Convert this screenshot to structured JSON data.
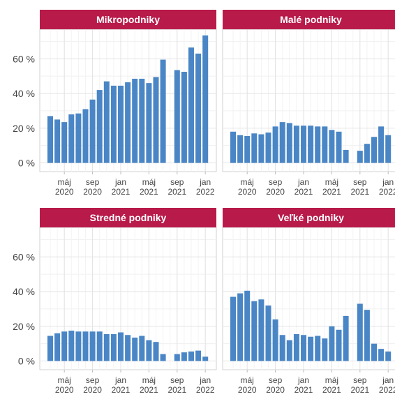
{
  "chart_data": [
    {
      "type": "bar",
      "title": "Mikropodniky",
      "color": "#4a86c5",
      "categories": [
        null,
        null,
        "máj 2020",
        null,
        null,
        null,
        "sep 2020",
        null,
        null,
        null,
        "jan 2021",
        null,
        null,
        null,
        "máj 2021",
        null,
        null,
        null,
        "sep 2021",
        null,
        null,
        null,
        "jan 2022"
      ],
      "values": [
        27,
        25,
        23.5,
        28,
        28.5,
        31,
        36.5,
        42,
        47,
        44.5,
        44.5,
        46.5,
        48.5,
        48.5,
        46,
        49.5,
        59.5,
        null,
        53.5,
        52.5,
        66.5,
        63,
        73.5
      ],
      "ylim": [
        -5,
        77
      ],
      "yticks": [
        {
          "value": 0,
          "label": "0 %"
        },
        {
          "value": 20,
          "label": "20 %"
        },
        {
          "value": 40,
          "label": "40 %"
        },
        {
          "value": 60,
          "label": "60 %"
        }
      ],
      "grid": true
    },
    {
      "type": "bar",
      "title": "Malé podniky",
      "color": "#4a86c5",
      "categories": [
        null,
        null,
        "máj 2020",
        null,
        null,
        null,
        "sep 2020",
        null,
        null,
        null,
        "jan 2021",
        null,
        null,
        null,
        "máj 2021",
        null,
        null,
        null,
        "sep 2021",
        null,
        null,
        null,
        "jan 2022"
      ],
      "values": [
        18,
        16,
        15.5,
        17,
        16.5,
        17.5,
        21,
        23.5,
        23,
        21.5,
        21.5,
        21.5,
        21,
        21,
        19,
        18,
        7.5,
        null,
        7,
        11,
        15,
        21,
        16
      ],
      "ylim": [
        -5,
        77
      ],
      "yticks": [
        0,
        20,
        40,
        60
      ],
      "grid": true
    },
    {
      "type": "bar",
      "title": "Stredné podniky",
      "color": "#4a86c5",
      "categories": [
        null,
        null,
        "máj 2020",
        null,
        null,
        null,
        "sep 2020",
        null,
        null,
        null,
        "jan 2021",
        null,
        null,
        null,
        "máj 2021",
        null,
        null,
        null,
        "sep 2021",
        null,
        null,
        null,
        "jan 2022"
      ],
      "values": [
        14.5,
        16,
        17,
        17.5,
        17,
        17,
        17,
        17,
        15.5,
        15.5,
        16.5,
        15,
        13.5,
        14.5,
        12,
        11,
        4,
        null,
        4,
        5,
        5.5,
        6,
        2.5
      ],
      "ylim": [
        -5,
        77
      ],
      "yticks": [
        {
          "value": 0,
          "label": "0 %"
        },
        {
          "value": 20,
          "label": "20 %"
        },
        {
          "value": 40,
          "label": "40 %"
        },
        {
          "value": 60,
          "label": "60 %"
        }
      ],
      "grid": true
    },
    {
      "type": "bar",
      "title": "Veľké podniky",
      "color": "#4a86c5",
      "categories": [
        null,
        null,
        "máj 2020",
        null,
        null,
        null,
        "sep 2020",
        null,
        null,
        null,
        "jan 2021",
        null,
        null,
        null,
        "máj 2021",
        null,
        null,
        null,
        "sep 2021",
        null,
        null,
        null,
        "jan 2022"
      ],
      "values": [
        37,
        39,
        40.5,
        34.5,
        35.5,
        32,
        24,
        15,
        12,
        15.5,
        15,
        14,
        14.5,
        13,
        20,
        18,
        26,
        null,
        33,
        29.5,
        10,
        7,
        5.5
      ],
      "ylim": [
        -5,
        77
      ],
      "yticks": [
        0,
        20,
        40,
        60
      ],
      "grid": true
    }
  ]
}
